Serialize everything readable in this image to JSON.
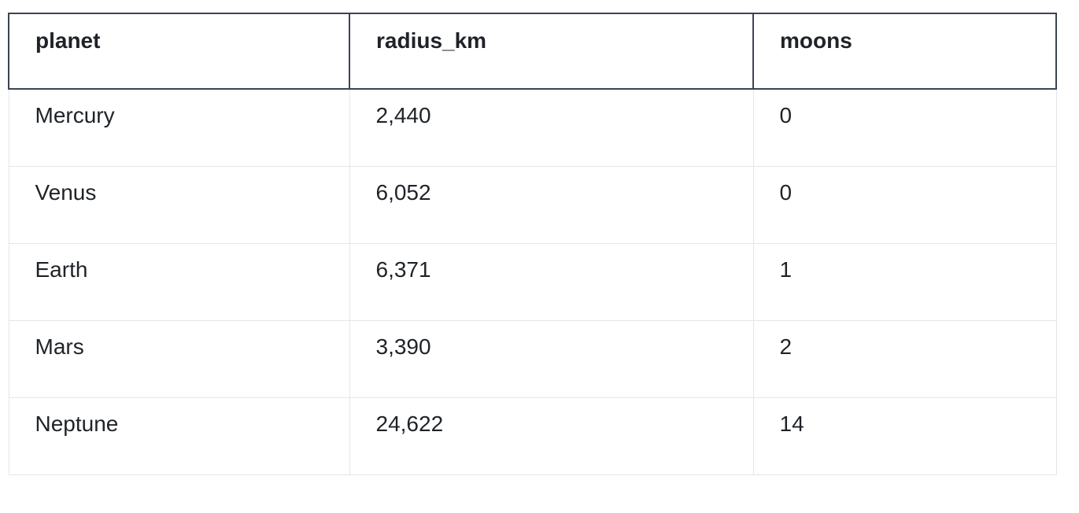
{
  "table": {
    "columns": [
      "planet",
      "radius_km",
      "moons"
    ],
    "rows": [
      [
        "Mercury",
        "2,440",
        "0"
      ],
      [
        "Venus",
        "6,052",
        "0"
      ],
      [
        "Earth",
        "6,371",
        "1"
      ],
      [
        "Mars",
        "3,390",
        "2"
      ],
      [
        "Neptune",
        "24,622",
        "14"
      ]
    ]
  }
}
